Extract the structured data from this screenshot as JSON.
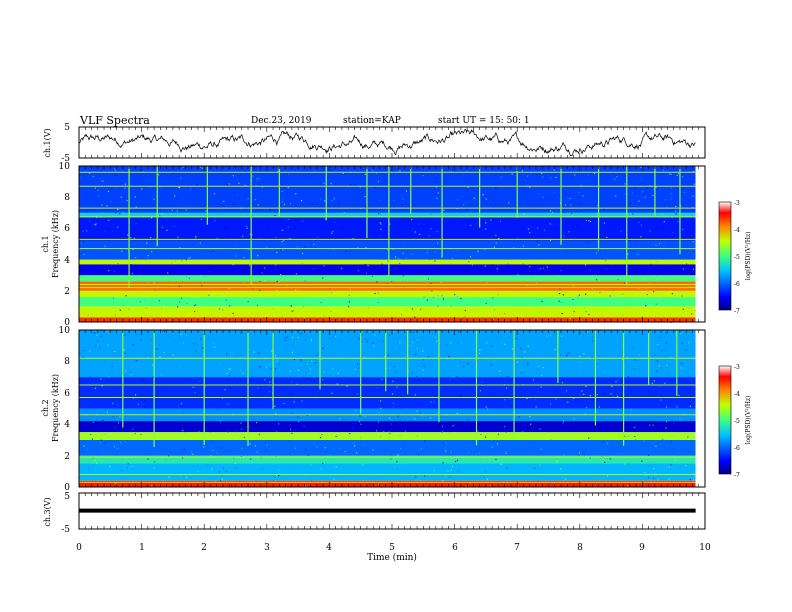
{
  "header": {
    "title": "VLF Spectra",
    "date": "Dec.23, 2019",
    "station": "station=KAP",
    "start": "start  UT =   15: 50: 1"
  },
  "chart_data": [
    {
      "type": "line",
      "panel": "ch1-waveform",
      "ylabel": "ch.1(V)",
      "ylim": [
        -5,
        5
      ],
      "yticks": [
        "5",
        "-5"
      ],
      "x_range_min": [
        0,
        9.85
      ],
      "note_values": "noisy waveform centred near 0 V, amplitude about ±3 V",
      "trace_color": "#000000"
    },
    {
      "type": "heatmap",
      "panel": "ch1-spectrogram",
      "ylabel": "ch.1\nFrequency (kHz)",
      "ylabel_lines": [
        "ch.1",
        "Frequency (kHz)"
      ],
      "ylim": [
        0,
        10
      ],
      "yticks": [
        "0",
        "2",
        "4",
        "6",
        "8",
        "10"
      ],
      "x_range_min": [
        0,
        9.85
      ],
      "scale": "log(PSD)(V²/Hz)",
      "colorbar": {
        "min": -7,
        "max": -3,
        "ticks": [
          "-3",
          "-4",
          "-5",
          "-6",
          "-7"
        ],
        "label": "log(PSD)(V²/Hz)"
      },
      "bands": [
        {
          "from_khz": 0.0,
          "to_khz": 0.3,
          "level": -3.6
        },
        {
          "from_khz": 0.3,
          "to_khz": 1.0,
          "level": -4.4
        },
        {
          "from_khz": 1.0,
          "to_khz": 1.6,
          "level": -5.0
        },
        {
          "from_khz": 1.6,
          "to_khz": 2.0,
          "level": -4.4
        },
        {
          "from_khz": 2.0,
          "to_khz": 2.6,
          "level": -3.8
        },
        {
          "from_khz": 2.6,
          "to_khz": 3.0,
          "level": -5.0
        },
        {
          "from_khz": 3.0,
          "to_khz": 3.7,
          "level": -6.6
        },
        {
          "from_khz": 3.7,
          "to_khz": 4.0,
          "level": -4.4
        },
        {
          "from_khz": 4.0,
          "to_khz": 5.2,
          "level": -6.1
        },
        {
          "from_khz": 5.2,
          "to_khz": 6.7,
          "level": -6.4
        },
        {
          "from_khz": 6.7,
          "to_khz": 7.0,
          "level": -5.4
        },
        {
          "from_khz": 7.0,
          "to_khz": 10.0,
          "level": -6.2
        }
      ],
      "lines_khz": [
        0.4,
        0.9,
        2.2,
        2.4,
        3.8,
        4.7,
        5.3,
        6.75,
        7.3,
        8.7,
        9.6
      ],
      "bursts_min": [
        0.8,
        1.25,
        2.05,
        2.75,
        3.2,
        3.95,
        4.6,
        4.95,
        5.3,
        5.8,
        6.4,
        7.0,
        7.7,
        8.3,
        8.75,
        9.2,
        9.6
      ]
    },
    {
      "type": "heatmap",
      "panel": "ch2-spectrogram",
      "ylabel": "ch.2\nFrequency (kHz)",
      "ylabel_lines": [
        "ch.2",
        "Frequency (kHz)"
      ],
      "ylim": [
        0,
        10
      ],
      "yticks": [
        "0",
        "2",
        "4",
        "6",
        "8",
        "10"
      ],
      "x_range_min": [
        0,
        9.85
      ],
      "scale": "log(PSD)(V²/Hz)",
      "colorbar": {
        "min": -7,
        "max": -3,
        "ticks": [
          "-3",
          "-4",
          "-5",
          "-6",
          "-7"
        ],
        "label": "log(PSD)(V²/Hz)"
      },
      "bands": [
        {
          "from_khz": 0.0,
          "to_khz": 0.4,
          "level": -3.5
        },
        {
          "from_khz": 0.4,
          "to_khz": 1.5,
          "level": -5.6
        },
        {
          "from_khz": 1.5,
          "to_khz": 2.0,
          "level": -5.2
        },
        {
          "from_khz": 2.0,
          "to_khz": 3.0,
          "level": -6.0
        },
        {
          "from_khz": 3.0,
          "to_khz": 3.5,
          "level": -4.6
        },
        {
          "from_khz": 3.5,
          "to_khz": 4.2,
          "level": -6.7
        },
        {
          "from_khz": 4.2,
          "to_khz": 5.0,
          "level": -5.8
        },
        {
          "from_khz": 5.0,
          "to_khz": 7.0,
          "level": -6.3
        },
        {
          "from_khz": 7.0,
          "to_khz": 10.0,
          "level": -5.7
        }
      ],
      "lines_khz": [
        0.3,
        0.8,
        1.9,
        3.3,
        4.6,
        5.7,
        6.5,
        8.2
      ],
      "bursts_min": [
        0.7,
        1.2,
        2.0,
        2.7,
        3.1,
        3.85,
        4.5,
        4.9,
        5.25,
        5.75,
        6.35,
        6.95,
        7.65,
        8.25,
        8.7,
        9.1,
        9.55
      ]
    },
    {
      "type": "line",
      "panel": "ch3-waveform",
      "ylabel": "ch.3(V)",
      "ylim": [
        -5,
        5
      ],
      "yticks": [
        "5",
        "-5"
      ],
      "x_range_min": [
        0,
        9.85
      ],
      "note_values": "constant at about 0 V",
      "level_v": 0.1,
      "trace_color": "#000000"
    }
  ],
  "xaxis": {
    "label": "Time (min)",
    "xlim": [
      0,
      10
    ],
    "ticks": [
      "0",
      "1",
      "2",
      "3",
      "4",
      "5",
      "6",
      "7",
      "8",
      "9",
      "10"
    ]
  }
}
